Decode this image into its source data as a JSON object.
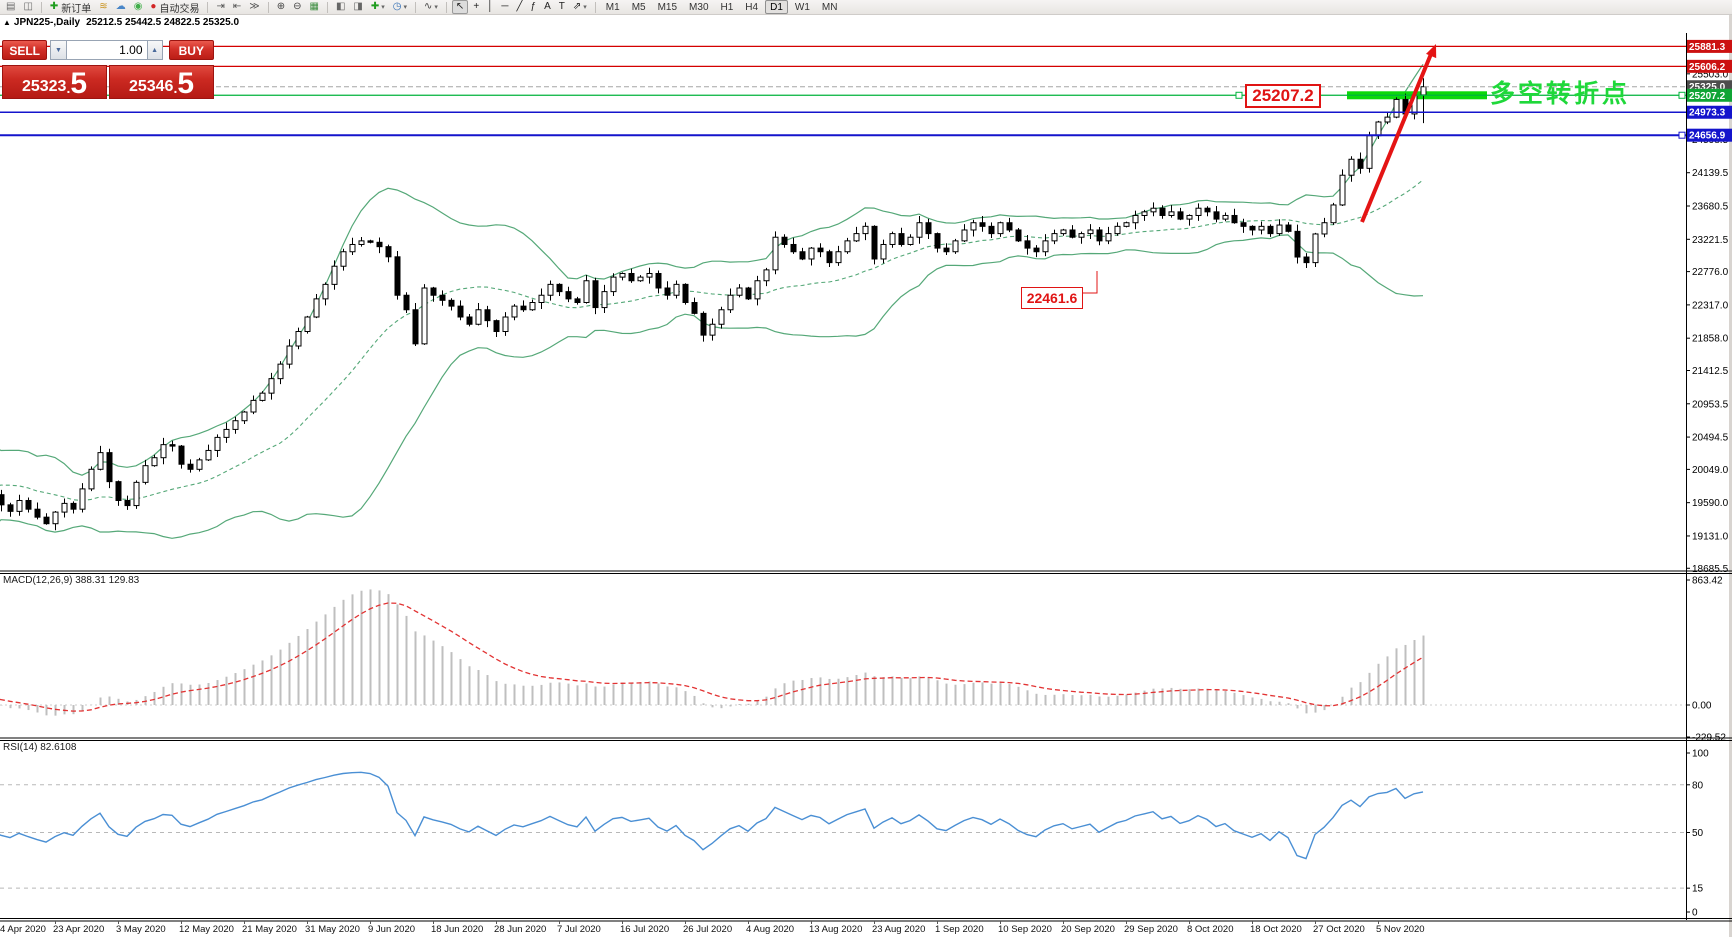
{
  "toolbar": {
    "items": [
      {
        "type": "icon",
        "name": "new-chart-window-icon",
        "glyph": "▤",
        "color": "#6a6a6a"
      },
      {
        "type": "icon",
        "name": "market-watch-icon",
        "glyph": "◫",
        "color": "#6a6a6a"
      },
      {
        "type": "sep"
      },
      {
        "type": "labeled",
        "name": "new-order-button",
        "glyph": "✚",
        "color": "#1f9d1f",
        "label": "新订单"
      },
      {
        "type": "icon",
        "name": "gold-symbols-icon",
        "glyph": "≋",
        "color": "#c8921e"
      },
      {
        "type": "icon",
        "name": "publisher-icon",
        "glyph": "☁",
        "color": "#4a86c8"
      },
      {
        "type": "icon",
        "name": "sounds-icon",
        "glyph": "◉",
        "color": "#3fae49"
      },
      {
        "type": "labeled",
        "name": "autotrading-button",
        "glyph": "●",
        "color": "#d22626",
        "label": "自动交易"
      },
      {
        "type": "sep"
      },
      {
        "type": "icon",
        "name": "chart-shift-end-icon",
        "glyph": "⇥",
        "color": "#555555"
      },
      {
        "type": "icon",
        "name": "chart-shift-icon",
        "glyph": "⇤",
        "color": "#555555"
      },
      {
        "type": "icon",
        "name": "chart-autoscroll-icon",
        "glyph": "≫",
        "color": "#555555"
      },
      {
        "type": "sep"
      },
      {
        "type": "icon",
        "name": "zoom-in-icon",
        "glyph": "⊕",
        "color": "#444444"
      },
      {
        "type": "icon",
        "name": "zoom-out-icon",
        "glyph": "⊖",
        "color": "#444444"
      },
      {
        "type": "icon",
        "name": "tile-windows-icon",
        "glyph": "▦",
        "color": "#3e8e41"
      },
      {
        "type": "sep"
      },
      {
        "type": "icon",
        "name": "profile-previous-icon",
        "glyph": "◧",
        "color": "#666666"
      },
      {
        "type": "icon",
        "name": "profile-next-icon",
        "glyph": "◨",
        "color": "#666666"
      },
      {
        "type": "dropdown",
        "name": "add-indicator-button",
        "glyph": "✚",
        "color": "#1f9d1f"
      },
      {
        "type": "dropdown",
        "name": "periods-button",
        "glyph": "◷",
        "color": "#2f6db5"
      },
      {
        "type": "sep"
      },
      {
        "type": "dropdown",
        "name": "chart-type-button",
        "glyph": "∿",
        "color": "#444444"
      },
      {
        "type": "sep"
      },
      {
        "type": "icon",
        "name": "cursor-tool",
        "glyph": "↖",
        "color": "#222222",
        "active": true
      },
      {
        "type": "icon",
        "name": "crosshair-tool",
        "glyph": "+",
        "color": "#222222"
      },
      {
        "type": "icon",
        "name": "vertical-line-tool",
        "glyph": "│",
        "color": "#222222"
      },
      {
        "type": "icon",
        "name": "horizontal-line-tool",
        "glyph": "─",
        "color": "#222222"
      },
      {
        "type": "icon",
        "name": "trendline-tool",
        "glyph": "╱",
        "color": "#222222"
      },
      {
        "type": "icon",
        "name": "fibonacci-tool",
        "glyph": "ƒ",
        "color": "#222222"
      },
      {
        "type": "icon",
        "name": "text-tool",
        "glyph": "A",
        "color": "#222222"
      },
      {
        "type": "icon",
        "name": "label-tool",
        "glyph": "T",
        "color": "#222222"
      },
      {
        "type": "dropdown",
        "name": "arrows-tool",
        "glyph": "⇗",
        "color": "#222222"
      },
      {
        "type": "sep"
      },
      {
        "type": "tf",
        "name": "timeframe-m1",
        "label": "M1"
      },
      {
        "type": "tf",
        "name": "timeframe-m5",
        "label": "M5"
      },
      {
        "type": "tf",
        "name": "timeframe-m15",
        "label": "M15"
      },
      {
        "type": "tf",
        "name": "timeframe-m30",
        "label": "M30"
      },
      {
        "type": "tf",
        "name": "timeframe-h1",
        "label": "H1"
      },
      {
        "type": "tf",
        "name": "timeframe-h4",
        "label": "H4"
      },
      {
        "type": "tf",
        "name": "timeframe-d1",
        "label": "D1",
        "active": true
      },
      {
        "type": "tf",
        "name": "timeframe-w1",
        "label": "W1"
      },
      {
        "type": "tf",
        "name": "timeframe-mn",
        "label": "MN"
      }
    ]
  },
  "title_bar": {
    "marker": "▲",
    "symbol_period": "JPN225-,Daily",
    "ohlc_values": "25212.5 25442.5 24822.5 25325.0"
  },
  "trade_panel": {
    "sell_label": "SELL",
    "buy_label": "BUY",
    "volume": "1.00",
    "spin_down_glyph": "▼",
    "spin_up_glyph": "▲",
    "sell_price_main": "25323",
    "sell_price_dot": ".",
    "sell_price_big": "5",
    "buy_price_main": "25346",
    "buy_price_dot": ".",
    "buy_price_big": "5"
  },
  "chart_data": {
    "type": "candlestick",
    "title": "JPN225-,Daily",
    "symbol": "JPN225-",
    "period": "Daily",
    "ylim": [
      18634,
      26066
    ],
    "price_ticks": [
      25503.0,
      24598.5,
      24139.5,
      23680.5,
      23221.5,
      22776.0,
      22317.0,
      21858.0,
      21412.5,
      20953.5,
      20494.5,
      20049.0,
      19590.0,
      19131.0,
      18685.5
    ],
    "x_labels": [
      "4 Apr 2020",
      "23 Apr 2020",
      "3 May 2020",
      "12 May 2020",
      "21 May 2020",
      "31 May 2020",
      "9 Jun 2020",
      "18 Jun 2020",
      "28 Jun 2020",
      "7 Jul 2020",
      "16 Jul 2020",
      "26 Jul 2020",
      "4 Aug 2020",
      "13 Aug 2020",
      "23 Aug 2020",
      "1 Sep 2020",
      "10 Sep 2020",
      "20 Sep 2020",
      "29 Sep 2020",
      "8 Oct 2020",
      "18 Oct 2020",
      "27 Oct 2020",
      "5 Nov 2020"
    ],
    "last_ohlc": {
      "open": 25212.5,
      "high": 25442.5,
      "low": 24822.5,
      "close": 25325.0
    },
    "pre_closes": [
      19600,
      19950,
      19250,
      18850,
      18600,
      19050,
      19500,
      19800,
      20050,
      20250,
      19800,
      20000,
      20200,
      20250,
      20000,
      19750,
      19600,
      19900,
      20050,
      19800,
      19700,
      19550,
      19500,
      19680
    ],
    "closes": [
      19700,
      19560,
      19470,
      19620,
      19500,
      19390,
      19300,
      19460,
      19580,
      19500,
      19780,
      20050,
      20280,
      19880,
      19620,
      19550,
      19870,
      20100,
      20210,
      20390,
      20370,
      20120,
      20050,
      20180,
      20310,
      20490,
      20600,
      20720,
      20840,
      21000,
      21100,
      21300,
      21500,
      21750,
      21950,
      22150,
      22400,
      22600,
      22850,
      23050,
      23150,
      23200,
      23180,
      23120,
      22980,
      22450,
      22250,
      21780,
      22550,
      22450,
      22380,
      22300,
      22150,
      22050,
      22250,
      22100,
      21950,
      22150,
      22300,
      22250,
      22350,
      22450,
      22600,
      22500,
      22400,
      22350,
      22650,
      22280,
      22500,
      22700,
      22750,
      22650,
      22700,
      22750,
      22550,
      22450,
      22600,
      22350,
      22200,
      21900,
      22050,
      22250,
      22450,
      22550,
      22400,
      22650,
      22800,
      23250,
      23150,
      23050,
      22950,
      23100,
      23050,
      22900,
      23050,
      23200,
      23300,
      23400,
      22950,
      23150,
      23300,
      23150,
      23250,
      23450,
      23300,
      23100,
      23050,
      23200,
      23350,
      23450,
      23400,
      23300,
      23450,
      23350,
      23200,
      23100,
      23050,
      23200,
      23300,
      23350,
      23250,
      23300,
      23350,
      23200,
      23300,
      23400,
      23450,
      23550,
      23600,
      23650,
      23550,
      23600,
      23500,
      23550,
      23650,
      23600,
      23500,
      23550,
      23450,
      23400,
      23350,
      23400,
      23300,
      23418,
      23331,
      22977,
      22900,
      23295,
      23450,
      23695,
      24105,
      24325,
      24200,
      24650,
      24839,
      24906,
      25150,
      24950,
      25210,
      25325
    ],
    "bollinger": {
      "period": 20,
      "deviation": 2,
      "color": "#55a878"
    },
    "levels": [
      {
        "name": "resistance-line-1",
        "price": 25881.3,
        "color": "#d40000",
        "width": 1.2,
        "style": "solid",
        "label_bg": "#cc1111"
      },
      {
        "name": "resistance-line-2",
        "price": 25606.2,
        "color": "#d40000",
        "width": 1.2,
        "style": "solid",
        "label_bg": "#cc1111"
      },
      {
        "name": "current-price-line",
        "price": 25325.0,
        "color": "#a6a6a6",
        "width": 1,
        "style": "dash",
        "label_bg": "#4d4d4d"
      },
      {
        "name": "turning-point-line",
        "price": 25207.2,
        "color": "#00b33c",
        "width": 1.2,
        "style": "solid",
        "label_bg": "#10a435",
        "thick": [
          1347,
          1487
        ],
        "handles": [
          1236,
          1679
        ]
      },
      {
        "name": "support-line-1",
        "price": 24973.3,
        "color": "#1414cc",
        "width": 1.4,
        "style": "solid",
        "label_bg": "#1414cc"
      },
      {
        "name": "support-line-2",
        "price": 24656.9,
        "color": "#1414cc",
        "width": 2,
        "style": "solid",
        "label_bg": "#1414cc",
        "handles": [
          1679
        ]
      }
    ],
    "annotations": {
      "resistance_callout": {
        "text": "25207.2"
      },
      "support_callout": {
        "text": "22461.6"
      },
      "turning_point": {
        "text": "多空转折点"
      },
      "trend_arrow": {
        "from": [
          1362,
          222
        ],
        "to": [
          1431,
          54
        ],
        "tip": [
          1436,
          44
        ],
        "color": "#e41414"
      },
      "thick_bar_color": "#0bd80b"
    },
    "indicators": {
      "macd": {
        "label": "MACD(12,26,9) 388.31 129.83",
        "params": [
          12,
          26,
          9
        ],
        "value_main": 388.31,
        "value_signal": 129.83,
        "ticks": [
          863.42,
          0.0,
          -229.52
        ],
        "max": 863.42,
        "min": -229.52,
        "histogram_color": "#bfbfbf",
        "signal_color": "#e23333"
      },
      "rsi": {
        "label": "RSI(14) 82.6108",
        "period": 14,
        "value": 82.6108,
        "ticks": [
          100,
          80,
          50,
          15,
          0
        ],
        "levels": [
          80,
          50,
          15
        ],
        "line_color": "#4a8fd4"
      }
    }
  }
}
